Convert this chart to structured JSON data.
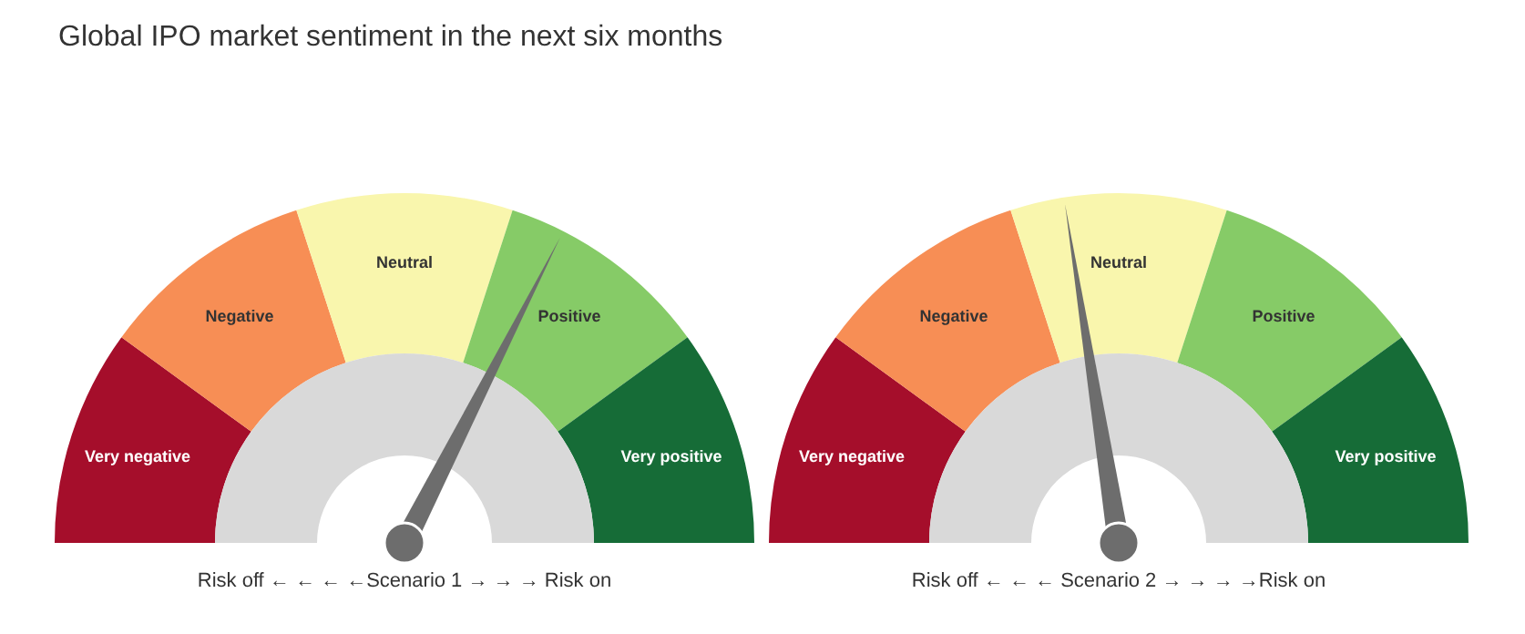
{
  "chart_data": [
    {
      "type": "donut",
      "title": "Global IPO market sentiment in the next six months",
      "xlabel": "Risk off ← ← ← ←Scenario 1 → → → Risk on",
      "categories": [
        "Very negative",
        "Negative",
        "Neutral",
        "Positive",
        "Very positive"
      ],
      "values": [
        20,
        20,
        20,
        20,
        20
      ],
      "colors": [
        "#a50e2b",
        "#f78e55",
        "#f9f6ad",
        "#86cb67",
        "#166c37"
      ],
      "needle": "Positive"
    },
    {
      "type": "donut",
      "xlabel": "Risk off ← ← ← Scenario 2 → → → →Risk on",
      "categories": [
        "Very negative",
        "Negative",
        "Neutral",
        "Positive",
        "Very positive"
      ],
      "values": [
        20,
        20,
        20,
        20,
        20
      ],
      "colors": [
        "#a50e2b",
        "#f78e55",
        "#f9f6ad",
        "#86cb67",
        "#166c37"
      ],
      "needle": "Neutral"
    }
  ]
}
